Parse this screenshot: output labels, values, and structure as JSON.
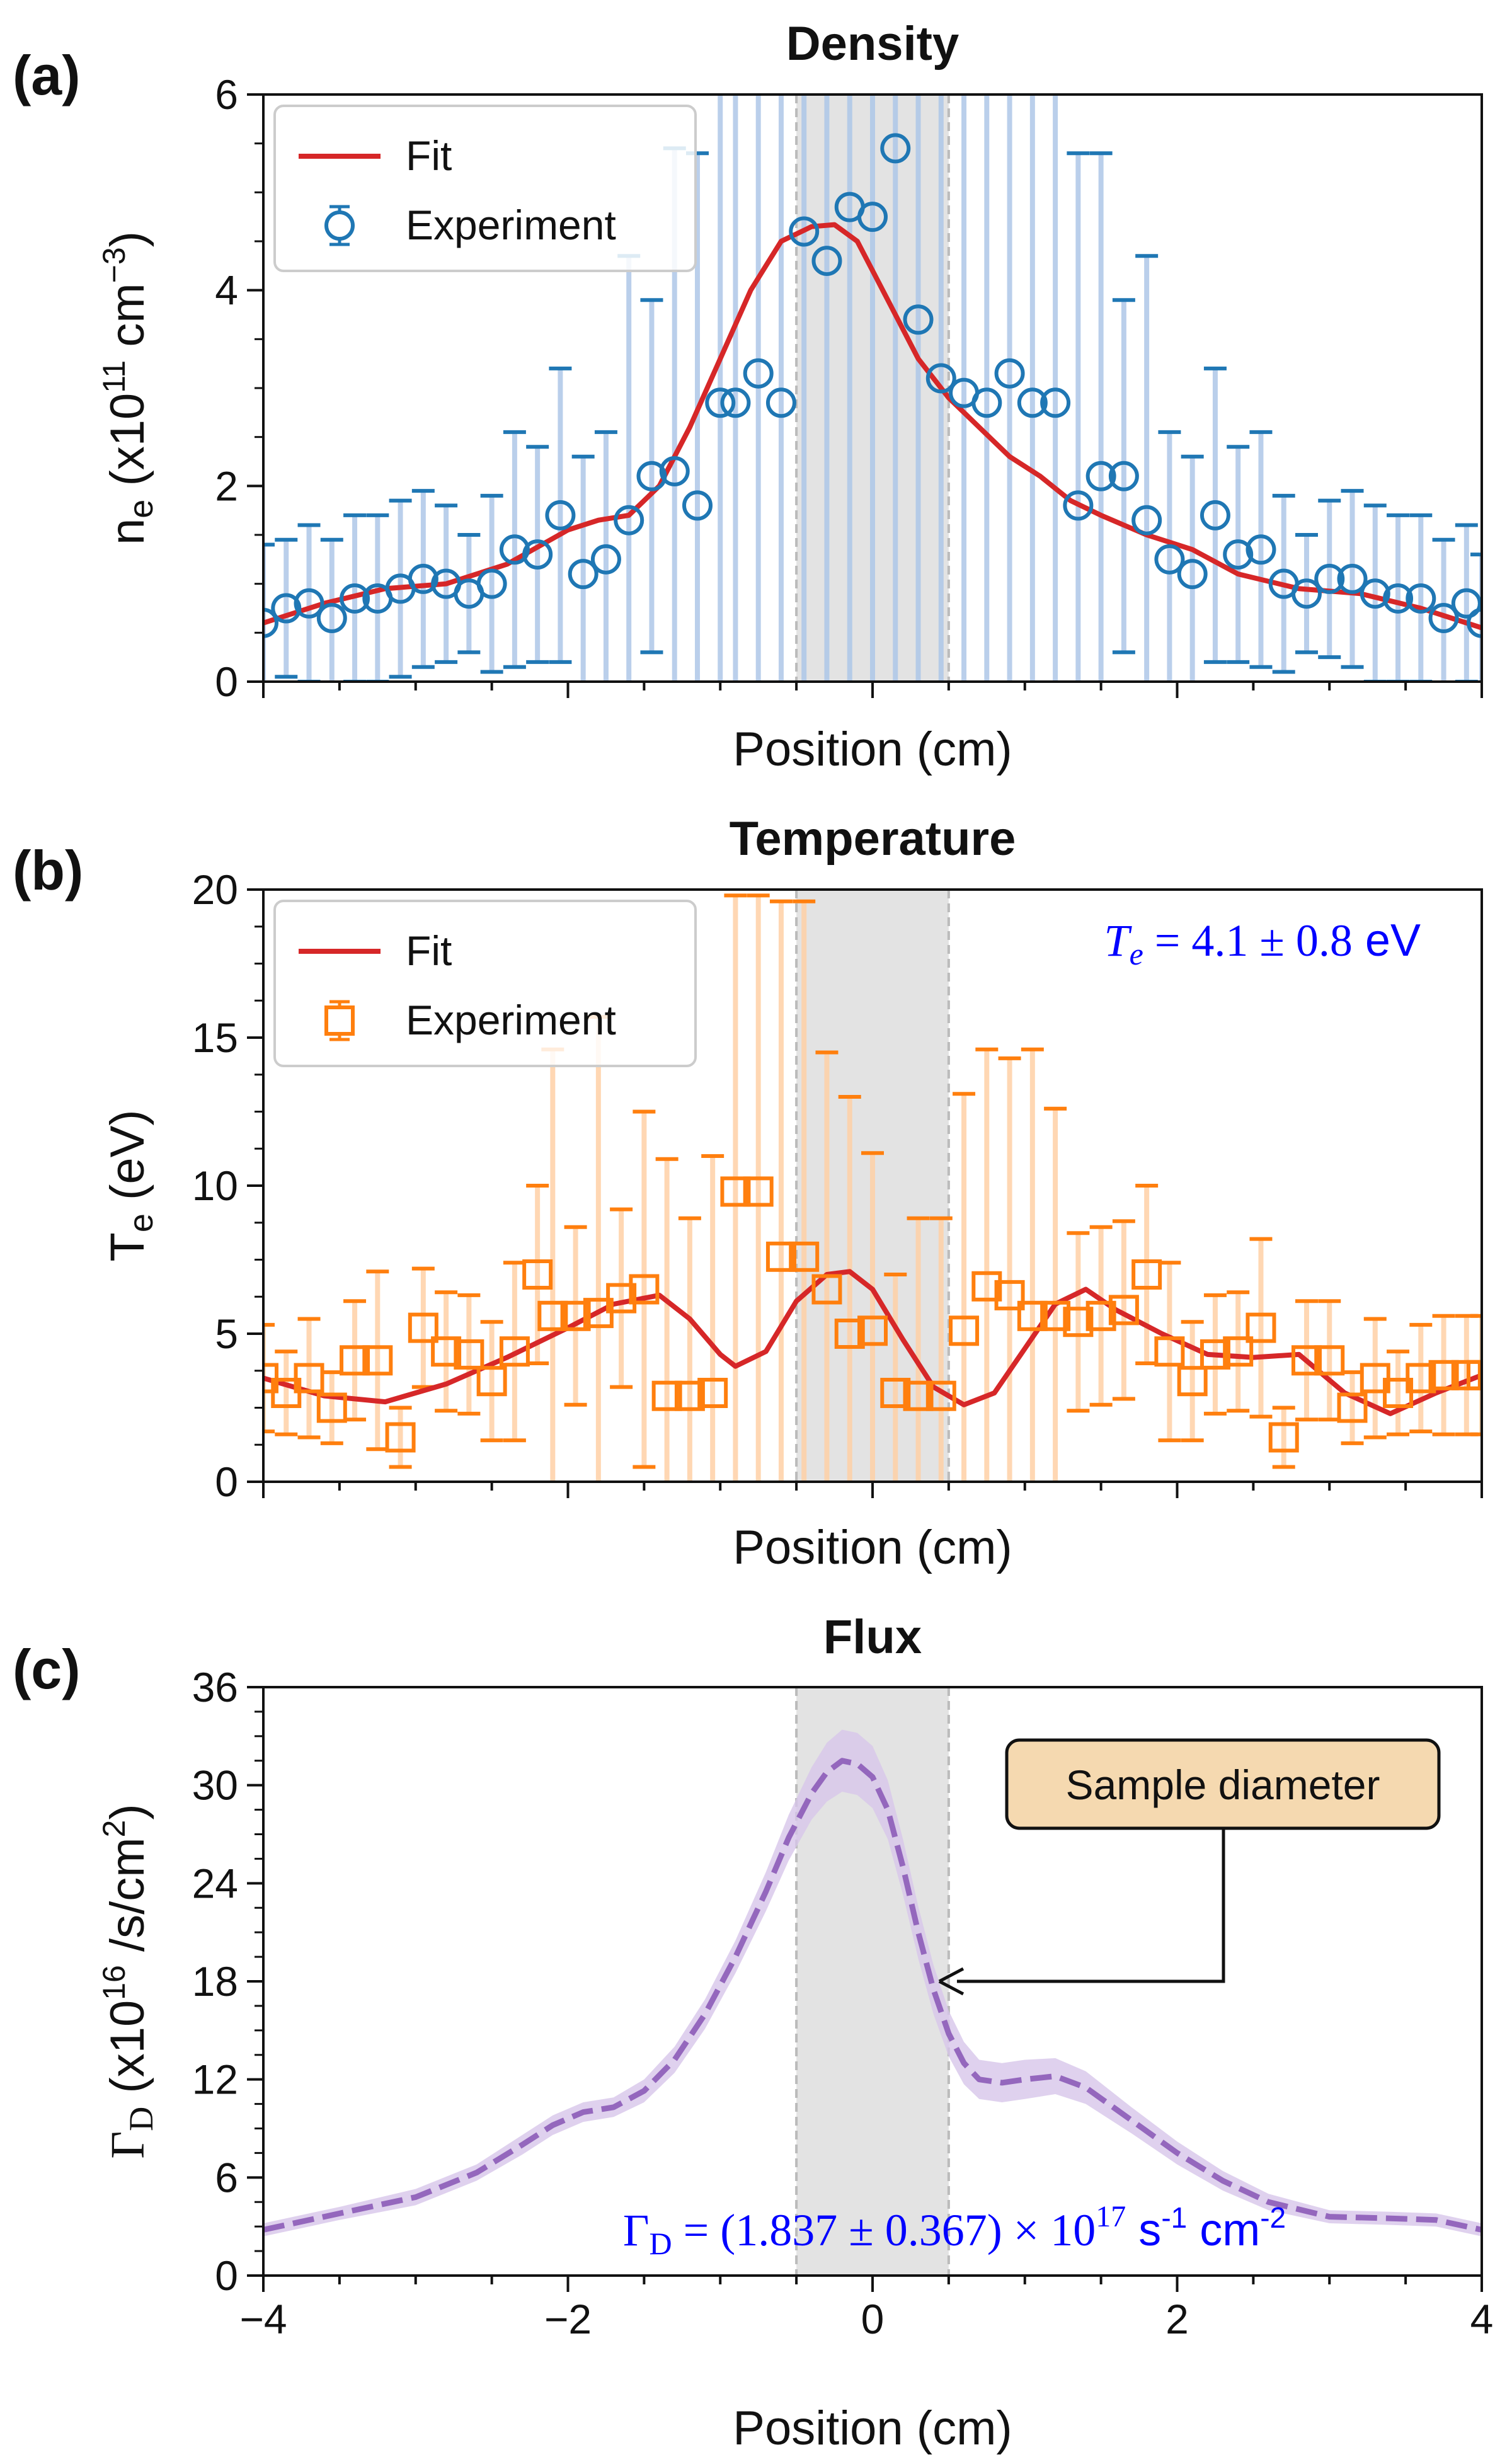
{
  "chart_data": [
    {
      "panel": "(a)",
      "type": "line",
      "title": "Density",
      "xlabel": "Position (cm)",
      "ylabel": {
        "base": "n",
        "sub": "e",
        "mid": " (x10",
        "sup": "11",
        "tail": " cm",
        "sup2": "−3",
        "end": ")"
      },
      "xlim": [
        -4,
        4
      ],
      "ylim": [
        0,
        6
      ],
      "yticks": [
        0,
        2,
        4,
        6
      ],
      "xtick_labels_shown": false,
      "shaded_band": [
        -0.5,
        0.5
      ],
      "legend_position": "top-left",
      "legend": [
        "Fit",
        "Experiment"
      ],
      "colors": {
        "fit": "#d62728",
        "experiment": "#1f77b4",
        "errorbar": "#aec7e8",
        "band": "#d9d9d9"
      },
      "series": [
        {
          "name": "Fit",
          "style": "solid-line",
          "x": [
            -4.0,
            -3.6,
            -3.2,
            -2.8,
            -2.4,
            -2.0,
            -1.8,
            -1.6,
            -1.4,
            -1.2,
            -1.0,
            -0.8,
            -0.6,
            -0.4,
            -0.25,
            -0.1,
            0.1,
            0.3,
            0.5,
            0.7,
            0.9,
            1.1,
            1.3,
            1.5,
            1.8,
            2.1,
            2.4,
            2.8,
            3.2,
            3.6,
            4.0
          ],
          "y": [
            0.6,
            0.8,
            0.95,
            1.0,
            1.2,
            1.55,
            1.65,
            1.7,
            2.0,
            2.6,
            3.3,
            4.0,
            4.5,
            4.65,
            4.67,
            4.5,
            3.9,
            3.3,
            2.9,
            2.6,
            2.3,
            2.1,
            1.85,
            1.7,
            1.5,
            1.35,
            1.1,
            0.95,
            0.9,
            0.75,
            0.55
          ]
        },
        {
          "name": "Experiment",
          "style": "open-circles-with-errorbars",
          "x": [
            -4.0,
            -3.85,
            -3.7,
            -3.55,
            -3.4,
            -3.25,
            -3.1,
            -2.95,
            -2.8,
            -2.65,
            -2.5,
            -2.35,
            -2.2,
            -2.05,
            -1.9,
            -1.75,
            -1.6,
            -1.45,
            -1.3,
            -1.15,
            -1.0,
            -0.9,
            -0.75,
            -0.6,
            -0.45,
            -0.3,
            -0.15,
            0.0,
            0.15,
            0.3,
            0.45,
            0.6,
            0.75,
            0.9,
            1.05,
            1.2,
            1.35,
            1.5,
            1.65,
            1.8,
            1.95,
            2.1,
            2.25,
            2.4,
            2.55,
            2.7,
            2.85,
            3.0,
            3.15,
            3.3,
            3.45,
            3.6,
            3.75,
            3.9,
            4.0
          ],
          "y": [
            0.6,
            0.75,
            0.8,
            0.65,
            0.85,
            0.85,
            0.95,
            1.05,
            1.0,
            0.9,
            1.0,
            1.35,
            1.3,
            1.7,
            1.1,
            1.25,
            1.65,
            2.1,
            2.15,
            1.8,
            2.85,
            2.85,
            3.15,
            2.85,
            4.6,
            4.3,
            4.85,
            4.75,
            5.45,
            3.7,
            3.1,
            2.95,
            2.85,
            3.15,
            2.85,
            2.85,
            1.8,
            2.1,
            2.1,
            1.65,
            1.25,
            1.1,
            1.7,
            1.3,
            1.35,
            1.0,
            0.9,
            1.05,
            1.05,
            0.9,
            0.85,
            0.85,
            0.65,
            0.8,
            0.6
          ],
          "err": [
            0.8,
            0.7,
            0.8,
            0.8,
            0.85,
            0.85,
            0.9,
            0.9,
            0.8,
            0.6,
            0.9,
            1.2,
            1.1,
            1.5,
            1.2,
            1.3,
            2.7,
            1.8,
            3.3,
            3.6,
            4.0,
            4.2,
            4.4,
            4.8,
            5.5,
            5.5,
            6.0,
            6.0,
            6.0,
            5.7,
            5.5,
            5.2,
            4.8,
            4.4,
            4.0,
            3.6,
            3.6,
            3.3,
            1.8,
            2.7,
            1.3,
            1.2,
            1.5,
            1.1,
            1.2,
            0.9,
            0.6,
            0.8,
            0.9,
            0.9,
            0.85,
            0.85,
            0.8,
            0.8,
            0.7
          ]
        }
      ]
    },
    {
      "panel": "(b)",
      "type": "line",
      "title": "Temperature",
      "xlabel": "Position (cm)",
      "ylabel": {
        "base": "T",
        "sub": "e",
        "tail": " (eV)"
      },
      "xlim": [
        -4,
        4
      ],
      "ylim": [
        0,
        20
      ],
      "yticks": [
        0,
        5,
        10,
        15,
        20
      ],
      "xtick_labels_shown": false,
      "shaded_band": [
        -0.5,
        0.5
      ],
      "legend_position": "top-left",
      "legend": [
        "Fit",
        "Experiment"
      ],
      "annotation": {
        "lhs": "T",
        "sub": "e",
        "rhs": " = 4.1 ± 0.8",
        "unit": " eV",
        "color": "#0000ff"
      },
      "colors": {
        "fit": "#d62728",
        "experiment": "#ff7f0e",
        "errorbar": "#ffd1a6",
        "band": "#d9d9d9"
      },
      "series": [
        {
          "name": "Fit",
          "style": "solid-line",
          "x": [
            -4.0,
            -3.6,
            -3.2,
            -2.8,
            -2.4,
            -2.0,
            -1.7,
            -1.4,
            -1.2,
            -1.0,
            -0.9,
            -0.7,
            -0.5,
            -0.3,
            -0.15,
            0.0,
            0.2,
            0.4,
            0.6,
            0.8,
            1.0,
            1.2,
            1.4,
            1.6,
            1.9,
            2.2,
            2.5,
            2.8,
            3.1,
            3.4,
            3.7,
            4.0
          ],
          "y": [
            3.5,
            2.9,
            2.7,
            3.3,
            4.2,
            5.2,
            6.0,
            6.3,
            5.5,
            4.3,
            3.9,
            4.4,
            6.1,
            7.0,
            7.1,
            6.5,
            4.8,
            3.2,
            2.6,
            3.0,
            4.5,
            6.0,
            6.5,
            5.8,
            5.0,
            4.3,
            4.2,
            4.3,
            3.0,
            2.3,
            3.0,
            3.6
          ]
        },
        {
          "name": "Experiment",
          "style": "open-squares-with-errorbars",
          "x": [
            -4.0,
            -3.85,
            -3.7,
            -3.55,
            -3.4,
            -3.25,
            -3.1,
            -2.95,
            -2.8,
            -2.65,
            -2.5,
            -2.35,
            -2.2,
            -2.1,
            -1.95,
            -1.8,
            -1.65,
            -1.5,
            -1.35,
            -1.2,
            -1.05,
            -0.9,
            -0.75,
            -0.6,
            -0.45,
            -0.3,
            -0.15,
            0.0,
            0.15,
            0.3,
            0.45,
            0.6,
            0.75,
            0.9,
            1.05,
            1.2,
            1.35,
            1.5,
            1.65,
            1.8,
            1.95,
            2.1,
            2.25,
            2.4,
            2.55,
            2.7,
            2.85,
            3.0,
            3.15,
            3.3,
            3.45,
            3.6,
            3.75,
            3.9,
            4.0
          ],
          "y": [
            3.5,
            3.0,
            3.5,
            2.5,
            4.1,
            4.1,
            1.5,
            5.2,
            4.4,
            4.3,
            3.4,
            4.4,
            7.0,
            5.6,
            5.6,
            5.7,
            6.2,
            6.5,
            2.9,
            2.9,
            3.0,
            9.8,
            9.8,
            7.6,
            7.6,
            6.5,
            5.0,
            5.1,
            3.0,
            2.9,
            2.9,
            5.1,
            6.6,
            6.3,
            5.6,
            5.6,
            5.4,
            5.6,
            5.8,
            7.0,
            4.4,
            3.4,
            4.3,
            4.4,
            5.2,
            1.5,
            4.1,
            4.1,
            2.5,
            3.5,
            3.0,
            3.5,
            3.6,
            3.6,
            3.6
          ],
          "err": [
            1.8,
            1.4,
            2.0,
            1.2,
            2.0,
            3.0,
            1.0,
            2.0,
            2.0,
            2.0,
            2.0,
            3.0,
            3.0,
            9.0,
            3.0,
            10.0,
            3.0,
            6.0,
            8.0,
            6.0,
            8.0,
            10.0,
            10.0,
            12.0,
            12.0,
            8.0,
            8.0,
            6.0,
            4.0,
            6.0,
            6.0,
            8.0,
            8.0,
            8.0,
            9.0,
            7.0,
            3.0,
            3.0,
            3.0,
            3.0,
            3.0,
            2.0,
            2.0,
            2.0,
            3.0,
            1.0,
            2.0,
            2.0,
            1.2,
            2.0,
            1.4,
            1.8,
            2.0,
            2.0,
            2.0
          ]
        }
      ]
    },
    {
      "panel": "(c)",
      "type": "line",
      "title": "Flux",
      "xlabel": "Position (cm)",
      "ylabel": {
        "base": "Γ",
        "sub": "D",
        "mid": " (x10",
        "sup": "16",
        "tail": " /s/cm",
        "sup2": "2",
        "end": ")"
      },
      "xlim": [
        -4,
        4
      ],
      "ylim": [
        0,
        36
      ],
      "xticks": [
        -4,
        -2,
        0,
        2,
        4
      ],
      "xtick_labels": [
        "−4",
        "−2",
        "0",
        "2",
        "4"
      ],
      "yticks": [
        0,
        6,
        12,
        18,
        24,
        30,
        36
      ],
      "shaded_band": [
        -0.5,
        0.5
      ],
      "annotation": {
        "lhs": "Γ",
        "sub": "D",
        "rhs": " = (1.837 ± 0.367) × 10",
        "sup": "17",
        "unit": " s",
        "sup_a": "-1",
        "unit_b": " cm",
        "sup_b": "-2",
        "color": "#0000ff"
      },
      "callout": {
        "text": "Sample diameter",
        "arrow_target": [
          0.43,
          18
        ],
        "fill": "#f5d9b0"
      },
      "colors": {
        "line": "#9467bd",
        "uncertainty": "#d7c6ea",
        "band": "#d9d9d9"
      },
      "series": [
        {
          "name": "",
          "style": "dashed-line-with-uncertainty-band",
          "x": [
            -4.0,
            -3.5,
            -3.0,
            -2.6,
            -2.3,
            -2.1,
            -1.9,
            -1.7,
            -1.5,
            -1.3,
            -1.1,
            -0.9,
            -0.7,
            -0.55,
            -0.4,
            -0.3,
            -0.2,
            -0.1,
            0.0,
            0.1,
            0.2,
            0.3,
            0.4,
            0.5,
            0.6,
            0.7,
            0.85,
            1.0,
            1.2,
            1.4,
            1.7,
            2.0,
            2.3,
            2.6,
            3.0,
            3.4,
            3.7,
            4.0
          ],
          "y": [
            2.8,
            3.8,
            4.8,
            6.3,
            8.0,
            9.2,
            10.0,
            10.3,
            11.3,
            13.2,
            16.0,
            19.5,
            23.5,
            26.8,
            29.5,
            30.8,
            31.5,
            31.3,
            30.5,
            28.5,
            25.0,
            21.0,
            17.5,
            14.8,
            13.0,
            12.0,
            11.8,
            12.0,
            12.2,
            11.5,
            9.5,
            7.5,
            5.8,
            4.5,
            3.6,
            3.5,
            3.4,
            2.8
          ],
          "unc": [
            0.4,
            0.4,
            0.5,
            0.5,
            0.6,
            0.6,
            0.6,
            0.6,
            0.7,
            0.8,
            0.9,
            1.0,
            1.2,
            1.4,
            1.6,
            1.8,
            1.9,
            1.9,
            1.9,
            1.8,
            1.7,
            1.6,
            1.5,
            1.4,
            1.3,
            1.2,
            1.2,
            1.2,
            1.1,
            1.0,
            0.8,
            0.7,
            0.6,
            0.5,
            0.4,
            0.4,
            0.4,
            0.4
          ]
        }
      ]
    }
  ]
}
